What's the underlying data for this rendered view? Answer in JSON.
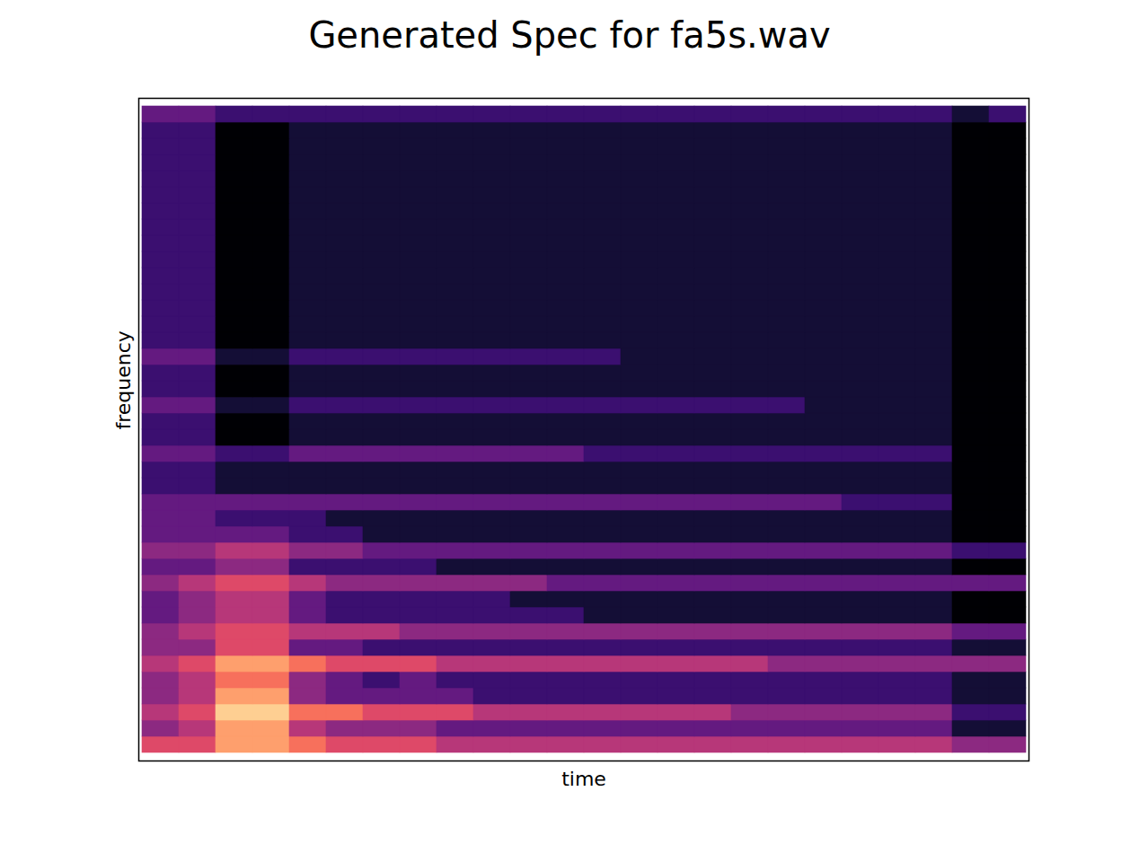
{
  "chart_data": {
    "type": "heatmap",
    "title": "Generated Spec for fa5s.wav",
    "x_label": "time",
    "y_label": "frequency",
    "tick_labels": false,
    "color": "magma",
    "zlim": [
      0,
      10
    ],
    "cells": [
      [
        6,
        6,
        8,
        8,
        7,
        6,
        6,
        6,
        5,
        5,
        5,
        5,
        5,
        5,
        5,
        5,
        5,
        5,
        5,
        5,
        5,
        5,
        4,
        4
      ],
      [
        4,
        5,
        8,
        8,
        5,
        4,
        4,
        4,
        3,
        3,
        3,
        3,
        3,
        3,
        3,
        3,
        3,
        3,
        3,
        3,
        3,
        3,
        1,
        1
      ],
      [
        5,
        6,
        9,
        9,
        7,
        7,
        6,
        6,
        6,
        5,
        5,
        5,
        5,
        5,
        5,
        5,
        4,
        4,
        4,
        4,
        4,
        4,
        2,
        2
      ],
      [
        4,
        5,
        8,
        8,
        4,
        3,
        3,
        3,
        3,
        2,
        2,
        2,
        2,
        2,
        2,
        2,
        2,
        2,
        2,
        2,
        2,
        2,
        1,
        1
      ],
      [
        4,
        5,
        7,
        7,
        4,
        3,
        2,
        3,
        2,
        2,
        2,
        2,
        2,
        2,
        2,
        2,
        2,
        2,
        2,
        2,
        2,
        2,
        1,
        1
      ],
      [
        5,
        6,
        8,
        8,
        7,
        6,
        6,
        6,
        5,
        5,
        5,
        5,
        5,
        5,
        5,
        5,
        5,
        4,
        4,
        4,
        4,
        4,
        4,
        4
      ],
      [
        4,
        4,
        6,
        6,
        3,
        3,
        2,
        2,
        2,
        2,
        2,
        2,
        2,
        2,
        2,
        2,
        2,
        2,
        2,
        2,
        2,
        2,
        1,
        1
      ],
      [
        4,
        5,
        6,
        6,
        5,
        5,
        5,
        4,
        4,
        4,
        4,
        4,
        4,
        4,
        4,
        4,
        4,
        4,
        4,
        4,
        4,
        4,
        3,
        3
      ],
      [
        3,
        4,
        5,
        5,
        3,
        2,
        2,
        2,
        2,
        2,
        2,
        2,
        1,
        1,
        1,
        1,
        1,
        1,
        1,
        1,
        1,
        1,
        0,
        0
      ],
      [
        3,
        4,
        5,
        5,
        3,
        2,
        2,
        2,
        2,
        2,
        1,
        1,
        1,
        1,
        1,
        1,
        1,
        1,
        1,
        1,
        1,
        1,
        0,
        0
      ],
      [
        4,
        5,
        6,
        6,
        5,
        4,
        4,
        4,
        4,
        4,
        4,
        3,
        3,
        3,
        3,
        3,
        3,
        3,
        3,
        3,
        3,
        3,
        3,
        3
      ],
      [
        3,
        3,
        4,
        4,
        2,
        2,
        2,
        2,
        1,
        1,
        1,
        1,
        1,
        1,
        1,
        1,
        1,
        1,
        1,
        1,
        1,
        1,
        0,
        0
      ],
      [
        4,
        4,
        5,
        5,
        4,
        4,
        3,
        3,
        3,
        3,
        3,
        3,
        3,
        3,
        3,
        3,
        3,
        3,
        3,
        3,
        3,
        3,
        2,
        2
      ],
      [
        3,
        3,
        3,
        3,
        2,
        2,
        1,
        1,
        1,
        1,
        1,
        1,
        1,
        1,
        1,
        1,
        1,
        1,
        1,
        1,
        1,
        1,
        0,
        0
      ],
      [
        3,
        3,
        2,
        2,
        2,
        1,
        1,
        1,
        1,
        1,
        1,
        1,
        1,
        1,
        1,
        1,
        1,
        1,
        1,
        1,
        1,
        1,
        0,
        0
      ],
      [
        3,
        3,
        3,
        3,
        3,
        3,
        3,
        3,
        3,
        3,
        3,
        3,
        3,
        3,
        3,
        3,
        3,
        3,
        3,
        2,
        2,
        2,
        0,
        0
      ],
      [
        2,
        2,
        1,
        1,
        1,
        1,
        1,
        1,
        1,
        1,
        1,
        1,
        1,
        1,
        1,
        1,
        1,
        1,
        1,
        1,
        1,
        1,
        0,
        0
      ],
      [
        2,
        2,
        1,
        1,
        1,
        1,
        1,
        1,
        1,
        1,
        1,
        1,
        1,
        1,
        1,
        1,
        1,
        1,
        1,
        1,
        1,
        1,
        0,
        0
      ],
      [
        3,
        3,
        2,
        2,
        3,
        3,
        3,
        3,
        3,
        3,
        3,
        3,
        2,
        2,
        2,
        2,
        2,
        2,
        2,
        2,
        2,
        2,
        0,
        0
      ],
      [
        2,
        2,
        0,
        0,
        1,
        1,
        1,
        1,
        1,
        1,
        1,
        1,
        1,
        1,
        1,
        1,
        1,
        1,
        1,
        1,
        1,
        1,
        0,
        0
      ],
      [
        2,
        2,
        0,
        0,
        1,
        1,
        1,
        1,
        1,
        1,
        1,
        1,
        1,
        1,
        1,
        1,
        1,
        1,
        1,
        1,
        1,
        1,
        0,
        0
      ],
      [
        3,
        3,
        1,
        1,
        2,
        2,
        2,
        2,
        2,
        2,
        2,
        2,
        2,
        2,
        2,
        2,
        2,
        2,
        1,
        1,
        1,
        1,
        0,
        0
      ],
      [
        2,
        2,
        0,
        0,
        1,
        1,
        1,
        1,
        1,
        1,
        1,
        1,
        1,
        1,
        1,
        1,
        1,
        1,
        1,
        1,
        1,
        1,
        0,
        0
      ],
      [
        2,
        2,
        0,
        0,
        1,
        1,
        1,
        1,
        1,
        1,
        1,
        1,
        1,
        1,
        1,
        1,
        1,
        1,
        1,
        1,
        1,
        1,
        0,
        0
      ],
      [
        3,
        3,
        1,
        1,
        2,
        2,
        2,
        2,
        2,
        2,
        2,
        2,
        2,
        1,
        1,
        1,
        1,
        1,
        1,
        1,
        1,
        1,
        0,
        0
      ],
      [
        2,
        2,
        0,
        0,
        1,
        1,
        1,
        1,
        1,
        1,
        1,
        1,
        1,
        1,
        1,
        1,
        1,
        1,
        1,
        1,
        1,
        1,
        0,
        0
      ],
      [
        2,
        2,
        0,
        0,
        1,
        1,
        1,
        1,
        1,
        1,
        1,
        1,
        1,
        1,
        1,
        1,
        1,
        1,
        1,
        1,
        1,
        1,
        0,
        0
      ],
      [
        2,
        2,
        0,
        0,
        1,
        1,
        1,
        1,
        1,
        1,
        1,
        1,
        1,
        1,
        1,
        1,
        1,
        1,
        1,
        1,
        1,
        1,
        0,
        0
      ],
      [
        2,
        2,
        0,
        0,
        1,
        1,
        1,
        1,
        1,
        1,
        1,
        1,
        1,
        1,
        1,
        1,
        1,
        1,
        1,
        1,
        1,
        1,
        0,
        0
      ],
      [
        2,
        2,
        0,
        0,
        1,
        1,
        1,
        1,
        1,
        1,
        1,
        1,
        1,
        1,
        1,
        1,
        1,
        1,
        1,
        1,
        1,
        1,
        0,
        0
      ],
      [
        2,
        2,
        0,
        0,
        1,
        1,
        1,
        1,
        1,
        1,
        1,
        1,
        1,
        1,
        1,
        1,
        1,
        1,
        1,
        1,
        1,
        1,
        0,
        0
      ],
      [
        2,
        2,
        0,
        0,
        1,
        1,
        1,
        1,
        1,
        1,
        1,
        1,
        1,
        1,
        1,
        1,
        1,
        1,
        1,
        1,
        1,
        1,
        0,
        0
      ],
      [
        2,
        2,
        0,
        0,
        1,
        1,
        1,
        1,
        1,
        1,
        1,
        1,
        1,
        1,
        1,
        1,
        1,
        1,
        1,
        1,
        1,
        1,
        0,
        0
      ],
      [
        2,
        2,
        0,
        0,
        1,
        1,
        1,
        1,
        1,
        1,
        1,
        1,
        1,
        1,
        1,
        1,
        1,
        1,
        1,
        1,
        1,
        1,
        0,
        0
      ],
      [
        2,
        2,
        0,
        0,
        1,
        1,
        1,
        1,
        1,
        1,
        1,
        1,
        1,
        1,
        1,
        1,
        1,
        1,
        1,
        1,
        1,
        1,
        0,
        0
      ],
      [
        2,
        2,
        0,
        0,
        1,
        1,
        1,
        1,
        1,
        1,
        1,
        1,
        1,
        1,
        1,
        1,
        1,
        1,
        1,
        1,
        1,
        1,
        0,
        0
      ],
      [
        2,
        2,
        0,
        0,
        1,
        1,
        1,
        1,
        1,
        1,
        1,
        1,
        1,
        1,
        1,
        1,
        1,
        1,
        1,
        1,
        1,
        1,
        0,
        0
      ],
      [
        2,
        2,
        0,
        0,
        1,
        1,
        1,
        1,
        1,
        1,
        1,
        1,
        1,
        1,
        1,
        1,
        1,
        1,
        1,
        1,
        1,
        1,
        0,
        0
      ],
      [
        2,
        2,
        0,
        0,
        1,
        1,
        1,
        1,
        1,
        1,
        1,
        1,
        1,
        1,
        1,
        1,
        1,
        1,
        1,
        1,
        1,
        1,
        0,
        0
      ],
      [
        3,
        3,
        2,
        2,
        2,
        2,
        2,
        2,
        2,
        2,
        2,
        2,
        2,
        2,
        2,
        2,
        2,
        2,
        2,
        2,
        2,
        2,
        1,
        2
      ]
    ]
  }
}
